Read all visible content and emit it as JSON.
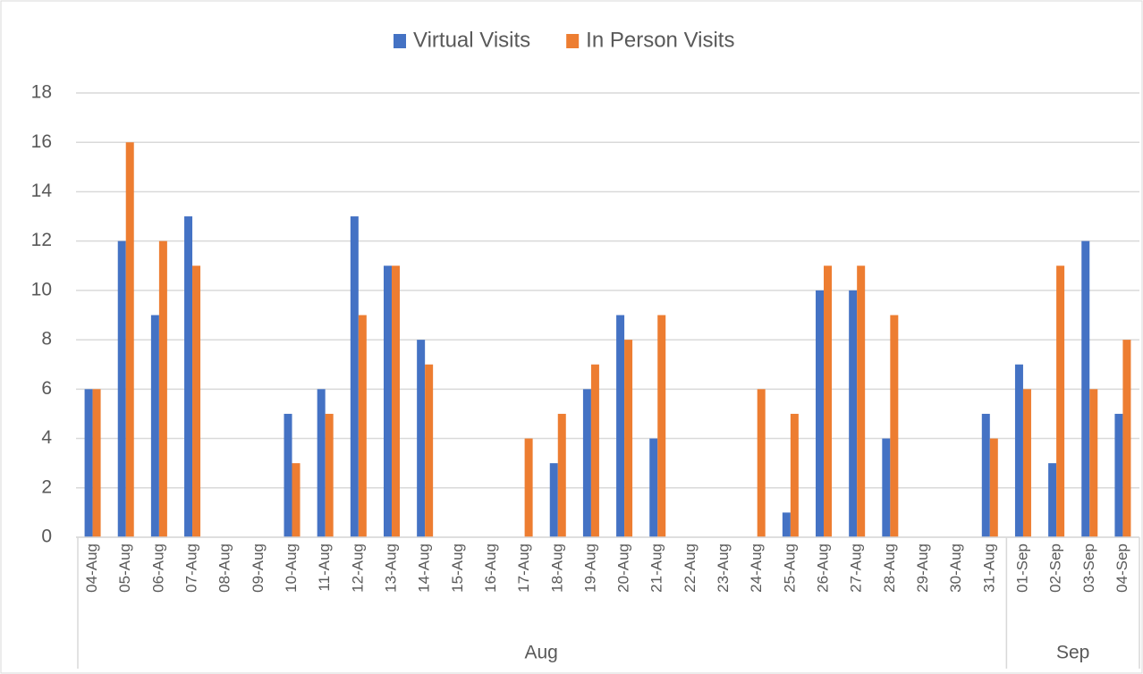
{
  "chart_data": {
    "type": "bar",
    "categories": [
      "04-Aug",
      "05-Aug",
      "06-Aug",
      "07-Aug",
      "08-Aug",
      "09-Aug",
      "10-Aug",
      "11-Aug",
      "12-Aug",
      "13-Aug",
      "14-Aug",
      "15-Aug",
      "16-Aug",
      "17-Aug",
      "18-Aug",
      "19-Aug",
      "20-Aug",
      "21-Aug",
      "22-Aug",
      "23-Aug",
      "24-Aug",
      "25-Aug",
      "26-Aug",
      "27-Aug",
      "28-Aug",
      "29-Aug",
      "30-Aug",
      "31-Aug",
      "01-Sep",
      "02-Sep",
      "03-Sep",
      "04-Sep"
    ],
    "groups": [
      "Aug",
      "Sep"
    ],
    "series": [
      {
        "name": "Virtual Visits",
        "color": "#4472c4",
        "values": [
          6,
          12,
          9,
          13,
          0,
          0,
          5,
          6,
          13,
          11,
          8,
          0,
          0,
          0,
          3,
          6,
          9,
          4,
          0,
          0,
          0,
          1,
          10,
          10,
          4,
          0,
          0,
          5,
          7,
          3,
          12,
          5
        ]
      },
      {
        "name": "In Person Visits",
        "color": "#ed7d31",
        "values": [
          6,
          16,
          12,
          11,
          0,
          0,
          3,
          5,
          9,
          11,
          7,
          0,
          0,
          4,
          5,
          7,
          8,
          9,
          0,
          0,
          6,
          5,
          11,
          11,
          9,
          0,
          0,
          4,
          6,
          11,
          6,
          8
        ]
      }
    ],
    "ylim": [
      0,
      18
    ],
    "yticks": [
      0,
      2,
      4,
      6,
      8,
      10,
      12,
      14,
      16,
      18
    ],
    "grid": true,
    "legend": "top"
  }
}
